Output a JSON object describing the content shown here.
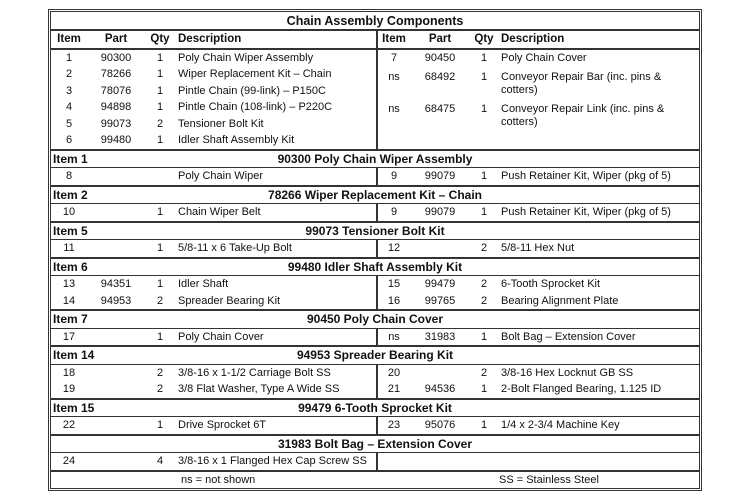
{
  "title": "Chain Assembly Components",
  "headers": {
    "item": "Item",
    "part": "Part",
    "qty": "Qty",
    "description": "Description"
  },
  "main_left": [
    {
      "item": "1",
      "part": "90300",
      "qty": "1",
      "desc": "Poly Chain Wiper Assembly"
    },
    {
      "item": "2",
      "part": "78266",
      "qty": "1",
      "desc": "Wiper Replacement Kit – Chain"
    },
    {
      "item": "3",
      "part": "78076",
      "qty": "1",
      "desc": "Pintle Chain (99-link) – P150C"
    },
    {
      "item": "4",
      "part": "94898",
      "qty": "1",
      "desc": "Pintle Chain (108-link) – P220C"
    },
    {
      "item": "5",
      "part": "99073",
      "qty": "2",
      "desc": "Tensioner Bolt Kit"
    },
    {
      "item": "6",
      "part": "99480",
      "qty": "1",
      "desc": "Idler Shaft Assembly Kit"
    }
  ],
  "main_right": [
    {
      "item": "7",
      "part": "90450",
      "qty": "1",
      "desc": "Poly Chain Cover"
    },
    {
      "item": "ns",
      "part": "68492",
      "qty": "1",
      "desc": "Conveyor Repair Bar (inc. pins & cotters)"
    },
    {
      "item": "ns",
      "part": "68475",
      "qty": "1",
      "desc": "Conveyor Repair Link (inc. pins & cotters)"
    }
  ],
  "sections": [
    {
      "item": "Item 1",
      "title": "90300  Poly Chain Wiper Assembly",
      "rows": [
        [
          {
            "item": "8",
            "part": "",
            "qty": "",
            "desc": "Poly Chain Wiper"
          },
          {
            "item": "9",
            "part": "99079",
            "qty": "1",
            "desc": "Push Retainer Kit, Wiper (pkg of 5)"
          }
        ]
      ]
    },
    {
      "item": "Item 2",
      "title": "78266  Wiper Replacement Kit – Chain",
      "rows": [
        [
          {
            "item": "10",
            "part": "",
            "qty": "1",
            "desc": "Chain Wiper Belt"
          },
          {
            "item": "9",
            "part": "99079",
            "qty": "1",
            "desc": "Push Retainer Kit, Wiper (pkg of 5)"
          }
        ]
      ]
    },
    {
      "item": "Item 5",
      "title": "99073  Tensioner Bolt Kit",
      "rows": [
        [
          {
            "item": "11",
            "part": "",
            "qty": "1",
            "desc": "5/8-11 x 6 Take-Up Bolt"
          },
          {
            "item": "12",
            "part": "",
            "qty": "2",
            "desc": "5/8-11 Hex Nut"
          }
        ]
      ]
    },
    {
      "item": "Item 6",
      "title": "99480  Idler Shaft Assembly Kit",
      "rows": [
        [
          {
            "item": "13",
            "part": "94351",
            "qty": "1",
            "desc": "Idler Shaft"
          },
          {
            "item": "15",
            "part": "99479",
            "qty": "2",
            "desc": "6-Tooth Sprocket Kit"
          }
        ],
        [
          {
            "item": "14",
            "part": "94953",
            "qty": "2",
            "desc": "Spreader Bearing Kit"
          },
          {
            "item": "16",
            "part": "99765",
            "qty": "2",
            "desc": "Bearing Alignment Plate"
          }
        ]
      ]
    },
    {
      "item": "Item 7",
      "title": "90450  Poly Chain Cover",
      "rows": [
        [
          {
            "item": "17",
            "part": "",
            "qty": "1",
            "desc": "Poly Chain Cover"
          },
          {
            "item": "ns",
            "part": "31983",
            "qty": "1",
            "desc": "Bolt Bag – Extension Cover"
          }
        ]
      ]
    },
    {
      "item": "Item 14",
      "title": "94953  Spreader Bearing Kit",
      "rows": [
        [
          {
            "item": "18",
            "part": "",
            "qty": "2",
            "desc": "3/8-16 x 1-1/2 Carriage Bolt SS"
          },
          {
            "item": "20",
            "part": "",
            "qty": "2",
            "desc": "3/8-16 Hex Locknut GB SS"
          }
        ],
        [
          {
            "item": "19",
            "part": "",
            "qty": "2",
            "desc": "3/8 Flat Washer, Type A Wide SS"
          },
          {
            "item": "21",
            "part": "94536",
            "qty": "1",
            "desc": "2-Bolt Flanged Bearing, 1.125 ID"
          }
        ]
      ]
    },
    {
      "item": "Item 15",
      "title": "99479  6-Tooth Sprocket Kit",
      "rows": [
        [
          {
            "item": "22",
            "part": "",
            "qty": "1",
            "desc": "Drive Sprocket 6T"
          },
          {
            "item": "23",
            "part": "95076",
            "qty": "1",
            "desc": "1/4 x 2-3/4 Machine Key"
          }
        ]
      ]
    },
    {
      "item": "",
      "title": "31983  Bolt Bag – Extension Cover",
      "rows": [
        [
          {
            "item": "24",
            "part": "",
            "qty": "4",
            "desc": "3/8-16 x 1 Flanged Hex Cap Screw SS"
          },
          null
        ]
      ]
    }
  ],
  "footer": {
    "ns": "ns = not shown",
    "ss": "SS = Stainless Steel"
  }
}
